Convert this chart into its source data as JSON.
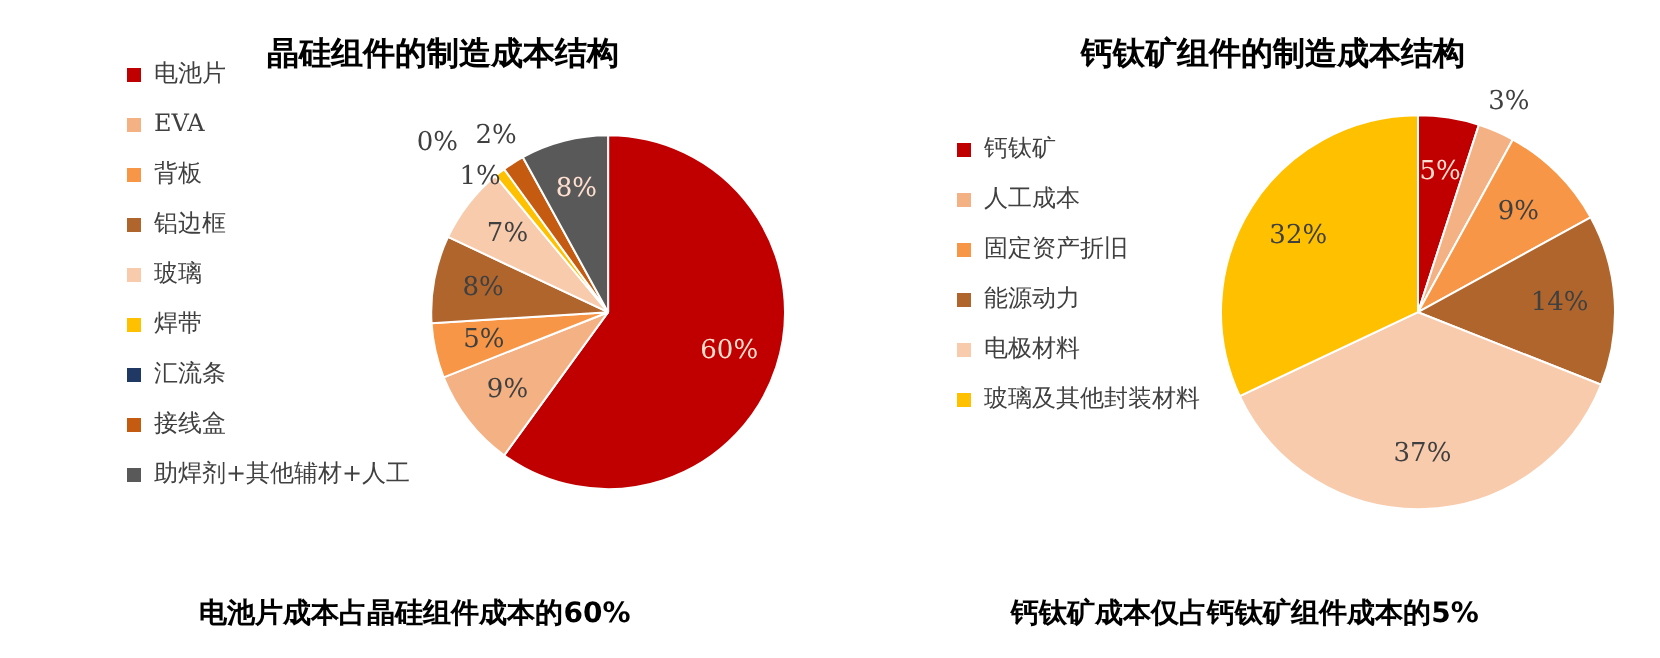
{
  "chart_data": [
    {
      "type": "pie",
      "title": "晶硅组件的制造成本结构",
      "categories": [
        "电池片",
        "EVA",
        "背板",
        "铝边框",
        "玻璃",
        "焊带",
        "汇流条",
        "接线盒",
        "助焊剂+其他辅材+人工"
      ],
      "values": [
        60,
        9,
        5,
        8,
        7,
        1,
        0,
        2,
        8
      ],
      "colors": [
        "#c00000",
        "#f4b183",
        "#f79646",
        "#b0652d",
        "#f8cbad",
        "#ffc000",
        "#1f3864",
        "#c55a11",
        "#595959"
      ],
      "value_labels": [
        "60%",
        "9%",
        "5%",
        "8%",
        "7%",
        "1%",
        "0%",
        "2%",
        "8%"
      ],
      "legend": "left",
      "annotations": [
        "电池片成本占晶硅组件成本的60%"
      ]
    },
    {
      "type": "pie",
      "title": "钙钛矿组件的制造成本结构",
      "categories": [
        "钙钛矿",
        "人工成本",
        "固定资产折旧",
        "能源动力",
        "电极材料",
        "玻璃及其他封装材料"
      ],
      "values": [
        5,
        3,
        9,
        14,
        37,
        32
      ],
      "colors": [
        "#c00000",
        "#f4b183",
        "#f79646",
        "#b0652d",
        "#f8cbad",
        "#ffc000"
      ],
      "value_labels": [
        "5%",
        "3%",
        "9%",
        "14%",
        "37%",
        "32%"
      ],
      "legend": "left",
      "annotations": [
        "钙钛矿成本仅占钙钛矿组件成本的5%"
      ]
    }
  ]
}
